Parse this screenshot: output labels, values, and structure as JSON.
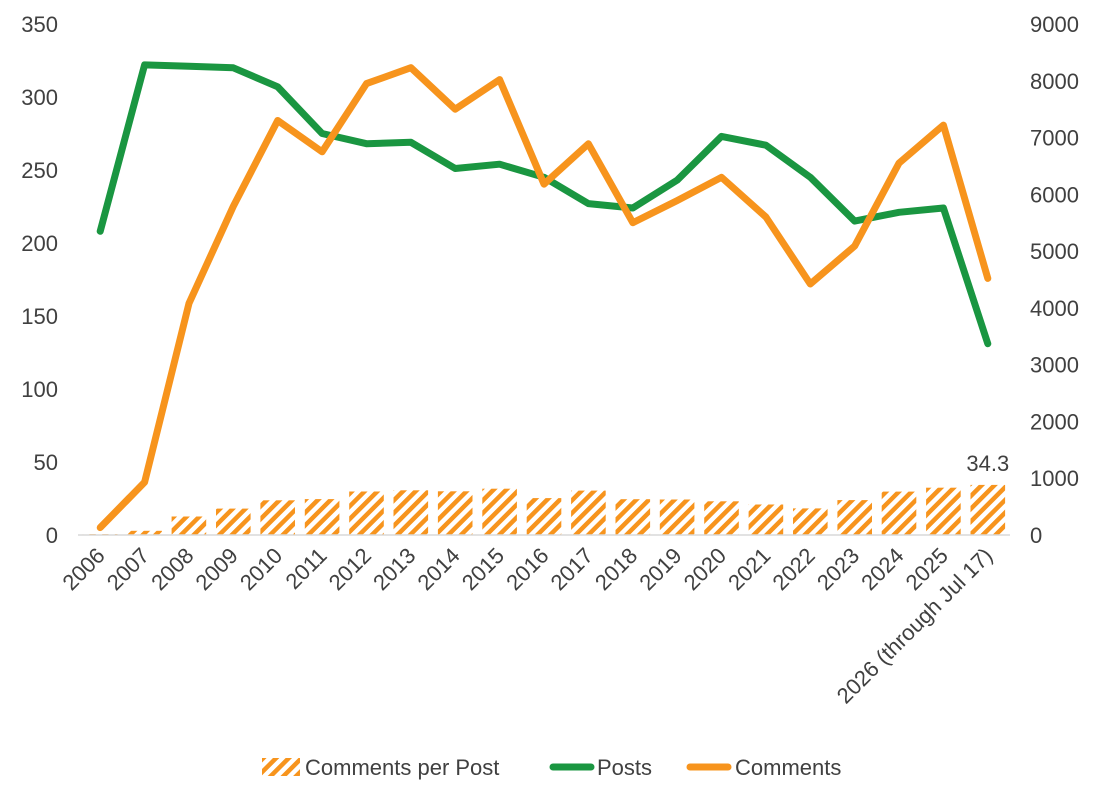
{
  "chart_data": {
    "type": "bar",
    "categories": [
      "2006",
      "2007",
      "2008",
      "2009",
      "2010",
      "2011",
      "2012",
      "2013",
      "2014",
      "2015",
      "2016",
      "2017",
      "2018",
      "2019",
      "2020",
      "2021",
      "2022",
      "2023",
      "2024",
      "2025",
      "2026 (through Jul 17)"
    ],
    "left_axis": {
      "ylim": [
        0,
        350
      ],
      "ticks": [
        0,
        50,
        100,
        150,
        200,
        250,
        300,
        350
      ]
    },
    "right_axis": {
      "ylim": [
        0,
        9000
      ],
      "ticks": [
        0,
        1000,
        2000,
        3000,
        4000,
        5000,
        6000,
        7000,
        8000,
        9000
      ]
    },
    "series": [
      {
        "name": "Comments per Post",
        "type": "bar",
        "axis": "left",
        "color": "#F7941D",
        "pattern": "diagonal-hatch",
        "values": [
          0.6,
          2.9,
          12.7,
          18.1,
          23.8,
          24.6,
          29.8,
          30.6,
          29.9,
          31.7,
          25.3,
          30.4,
          24.5,
          24.3,
          23.1,
          20.9,
          18.2,
          23.9,
          29.7,
          32.4,
          34.3
        ]
      },
      {
        "name": "Posts",
        "type": "line",
        "axis": "left",
        "color": "#1A9641",
        "values": [
          208,
          322,
          321,
          320,
          307,
          275,
          268,
          269,
          251,
          254,
          245,
          227,
          224,
          243,
          273,
          267,
          245,
          215,
          221,
          224,
          131
        ]
      },
      {
        "name": "Comments",
        "type": "line",
        "axis": "right",
        "color": "#F7941D",
        "values": [
          130,
          930,
          4080,
          5790,
          7300,
          6750,
          7950,
          8230,
          7500,
          8020,
          6180,
          6890,
          5500,
          5890,
          6300,
          5600,
          4420,
          5090,
          6550,
          7220,
          4520
        ]
      }
    ],
    "data_labels": [
      {
        "series": "Comments per Post",
        "category": "2026 (through Jul 17)",
        "text": "34.3"
      }
    ],
    "legend": {
      "position": "bottom",
      "items": [
        {
          "label": "Comments per Post",
          "style": "hatch",
          "color": "#F7941D"
        },
        {
          "label": "Posts",
          "style": "line",
          "color": "#1A9641"
        },
        {
          "label": "Comments",
          "style": "line",
          "color": "#F7941D"
        }
      ]
    },
    "grid": false,
    "title": "",
    "xlabel": "",
    "ylabel": ""
  }
}
